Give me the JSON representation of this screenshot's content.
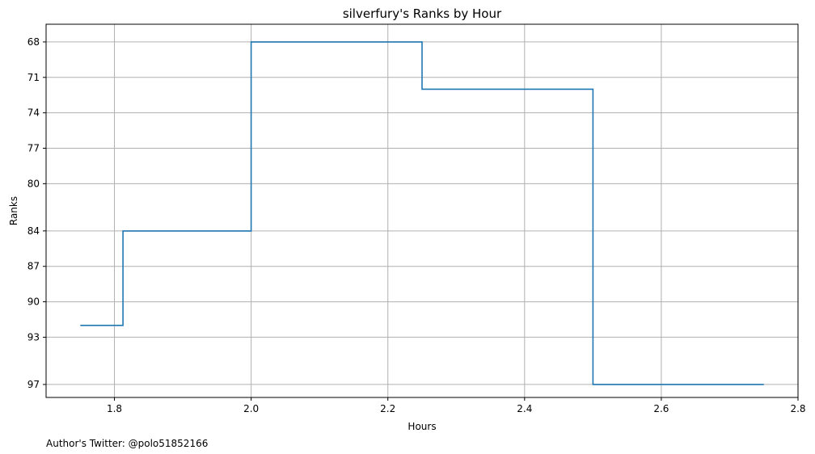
{
  "chart_data": {
    "type": "line",
    "step": "mid",
    "title": "silverfury's Ranks by Hour",
    "xlabel": "Hours",
    "ylabel": "Ranks",
    "xlim": [
      1.7,
      2.8
    ],
    "ylim": [
      98.1,
      66.5
    ],
    "y_inverted": true,
    "xticks": [
      1.8,
      2.0,
      2.2,
      2.4,
      2.6,
      2.8
    ],
    "xtick_labels": [
      "1.8",
      "2.0",
      "2.2",
      "2.4",
      "2.6",
      "2.8"
    ],
    "yticks": [
      68,
      71,
      74,
      77,
      80,
      84,
      87,
      90,
      93,
      97
    ],
    "ytick_labels": [
      "68",
      "71",
      "74",
      "77",
      "80",
      "84",
      "87",
      "90",
      "93",
      "97"
    ],
    "grid": true,
    "line_color": "#1f77b4",
    "series": [
      {
        "x": [
          1.75,
          1.875,
          2.125,
          2.375,
          2.625,
          2.75
        ],
        "y": [
          92,
          84,
          68,
          72,
          97,
          97
        ]
      }
    ]
  },
  "footer": {
    "text": "Author's Twitter: @polo51852166"
  }
}
